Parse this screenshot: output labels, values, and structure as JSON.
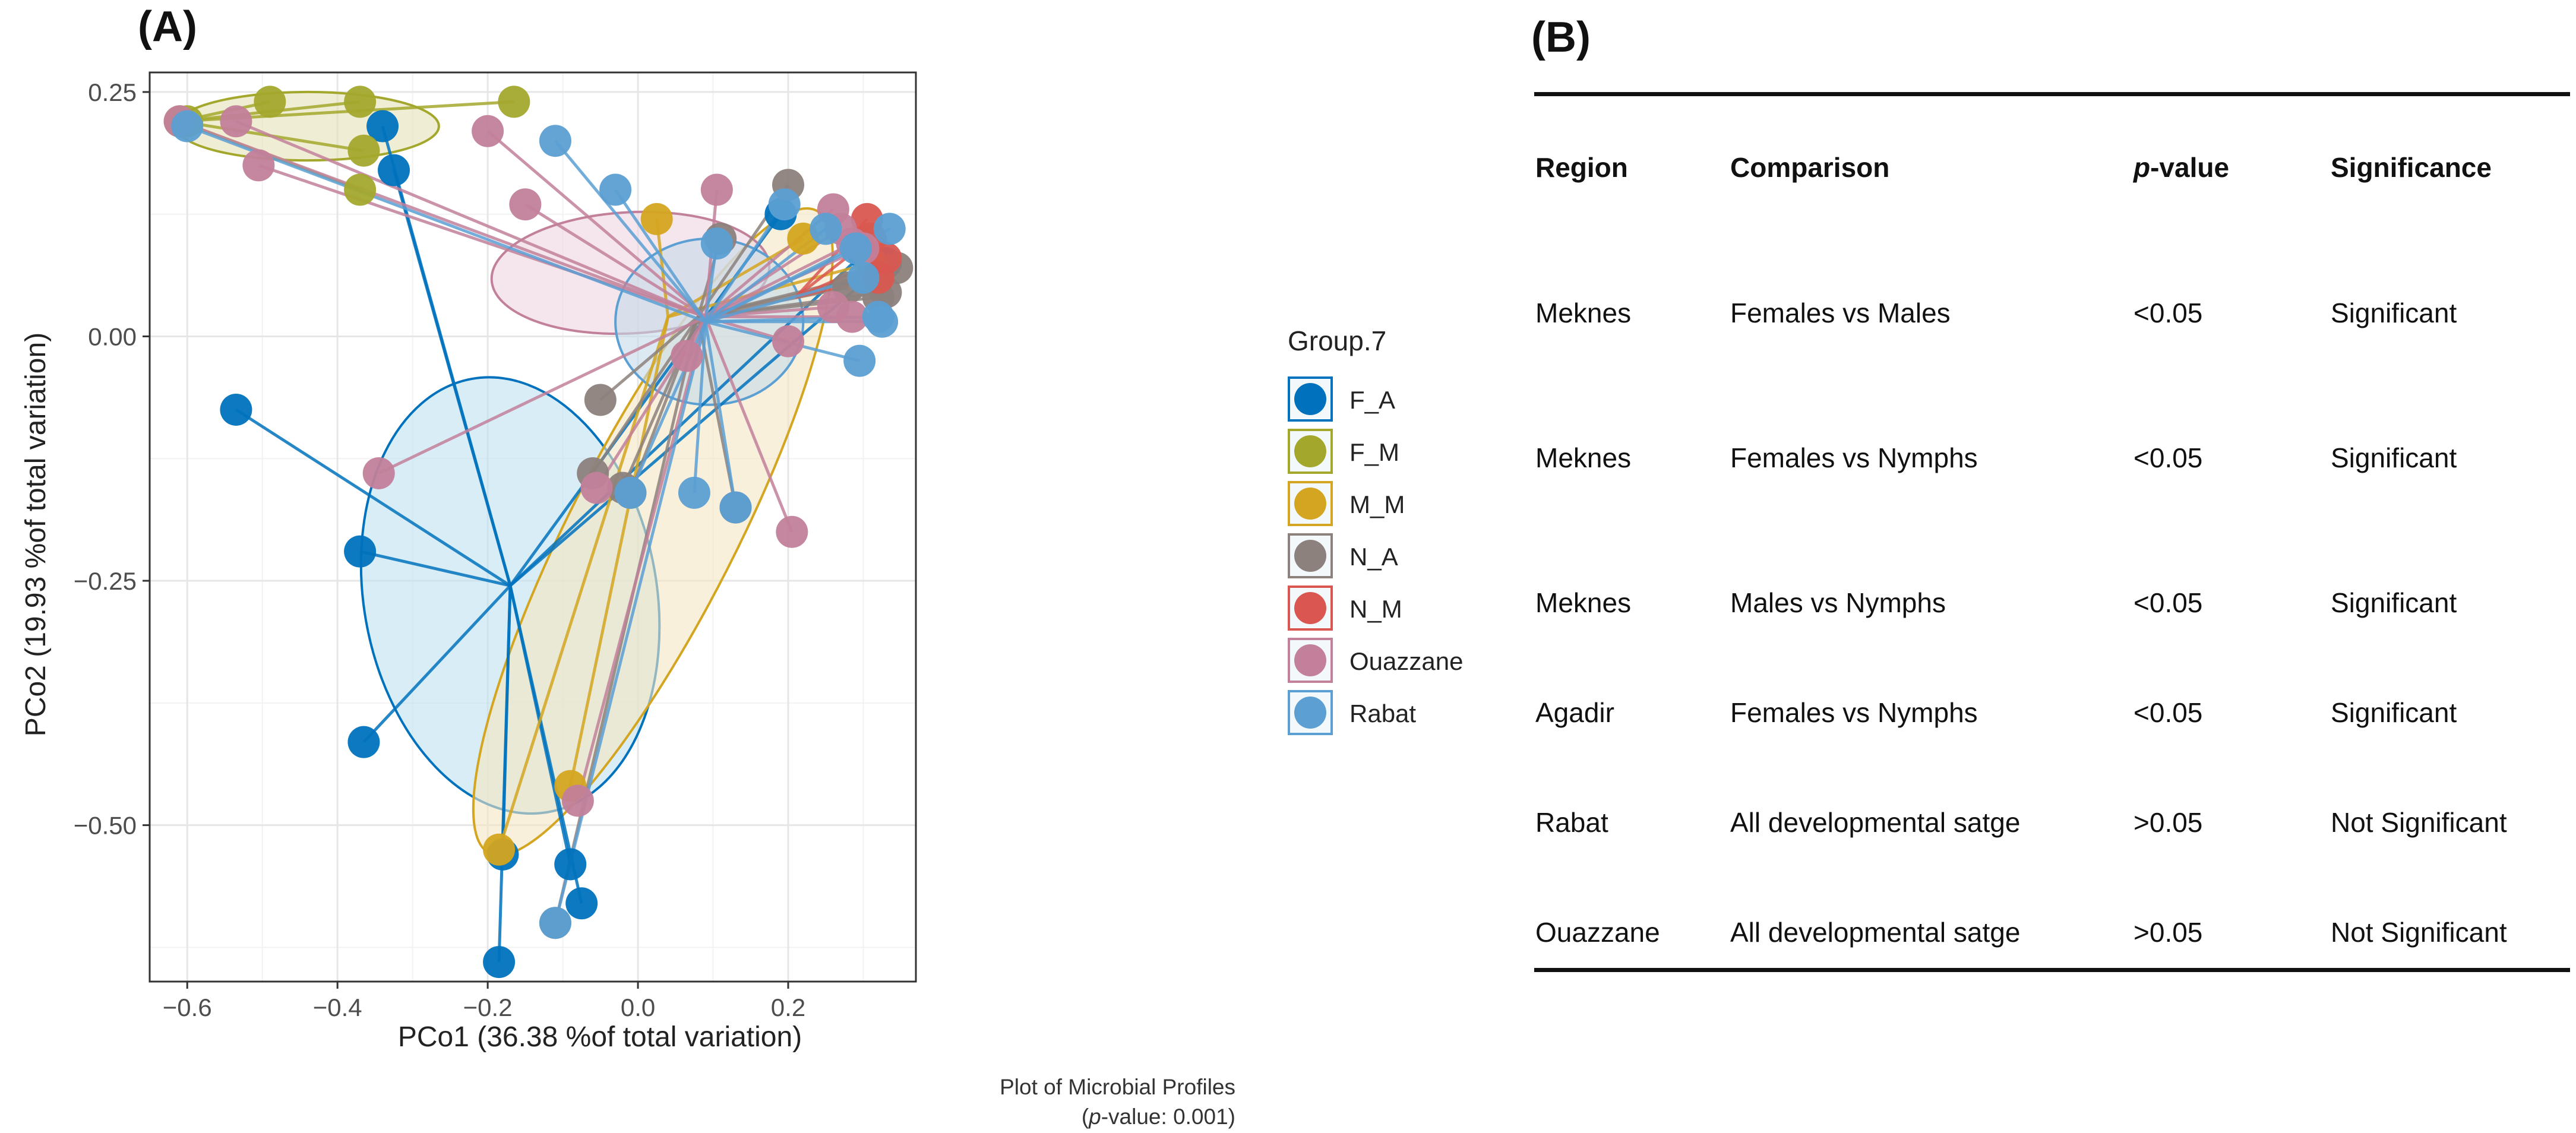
{
  "panel_labels": {
    "a": "(A)",
    "b": "(B)"
  },
  "chart_data": {
    "type": "scatter",
    "title": "Plot of Microbial Profiles",
    "subtitle": {
      "p_label": "p",
      "p_rest": "-value: 0.001"
    },
    "xlabel": "PCo1 (36.38 %of total variation)",
    "ylabel": "PCo2 (19.93 %of total variation)",
    "xlim": [
      -0.65,
      0.37
    ],
    "ylim": [
      -0.66,
      0.27
    ],
    "xticks": [
      -0.6,
      -0.4,
      -0.2,
      0.0,
      0.2
    ],
    "xtick_labels": [
      "−0.6",
      "−0.4",
      "−0.2",
      "0.0",
      "0.2"
    ],
    "yticks": [
      0.25,
      0.0,
      -0.25,
      -0.5
    ],
    "ytick_labels": [
      "0.25",
      "0.00",
      "−0.25",
      "−0.50"
    ],
    "grid": true,
    "legend": {
      "title": "Group.7",
      "position": "right",
      "entries": [
        {
          "label": "F_A",
          "color": "#0072BD"
        },
        {
          "label": "F_M",
          "color": "#A3A82D"
        },
        {
          "label": "M_M",
          "color": "#D4A520"
        },
        {
          "label": "N_A",
          "color": "#8C817C"
        },
        {
          "label": "N_M",
          "color": "#D95750"
        },
        {
          "label": "Ouazzane",
          "color": "#C2809A"
        },
        {
          "label": "Rabat",
          "color": "#5B9FD3"
        }
      ]
    },
    "series": [
      {
        "name": "F_A",
        "color": "#0072BD",
        "fill": "#bfe1f0",
        "centroid": [
          -0.17,
          -0.255
        ],
        "ellipse": {
          "cx": -0.17,
          "cy": -0.265,
          "rx": 0.195,
          "ry": 0.225,
          "angle": -10
        },
        "points": [
          [
            -0.535,
            -0.075
          ],
          [
            -0.37,
            -0.22
          ],
          [
            -0.365,
            -0.415
          ],
          [
            -0.18,
            -0.53
          ],
          [
            -0.185,
            -0.64
          ],
          [
            -0.09,
            -0.54
          ],
          [
            -0.075,
            -0.58
          ],
          [
            -0.34,
            0.215
          ],
          [
            -0.325,
            0.17
          ],
          [
            0.19,
            0.125
          ],
          [
            0.3,
            0.085
          ],
          [
            0.33,
            0.075
          ]
        ]
      },
      {
        "name": "F_M",
        "color": "#A3A82D",
        "fill": "#e4e3b8",
        "centroid": [
          -0.61,
          0.22
        ],
        "ellipse": {
          "cx": -0.44,
          "cy": 0.215,
          "rx": 0.175,
          "ry": 0.035,
          "angle": 0
        },
        "points": [
          [
            -0.61,
            0.22
          ],
          [
            -0.49,
            0.24
          ],
          [
            -0.37,
            0.24
          ],
          [
            -0.365,
            0.19
          ],
          [
            -0.37,
            0.15
          ],
          [
            -0.165,
            0.24
          ],
          [
            -0.6,
            0.22
          ]
        ]
      },
      {
        "name": "M_M",
        "color": "#D4A520",
        "fill": "#f3e6c2",
        "centroid": [
          0.04,
          0.02
        ],
        "ellipse": {
          "cx": 0.02,
          "cy": -0.2,
          "rx": 0.48,
          "ry": 0.085,
          "angle": -63
        },
        "points": [
          [
            0.025,
            0.12
          ],
          [
            0.22,
            0.1
          ],
          [
            -0.09,
            -0.46
          ],
          [
            -0.185,
            -0.525
          ],
          [
            0.31,
            0.075
          ]
        ]
      },
      {
        "name": "N_A",
        "color": "#8C817C",
        "fill": "#d9d4d0",
        "centroid": [
          0.08,
          0.02
        ],
        "ellipse": null,
        "points": [
          [
            0.2,
            0.155
          ],
          [
            0.28,
            0.05
          ],
          [
            0.31,
            0.06
          ],
          [
            0.32,
            0.04
          ],
          [
            0.33,
            0.045
          ],
          [
            0.345,
            0.07
          ],
          [
            0.11,
            0.1
          ],
          [
            -0.05,
            -0.065
          ],
          [
            -0.06,
            -0.14
          ],
          [
            -0.01,
            -0.16
          ],
          [
            -0.02,
            -0.155
          ],
          [
            -0.11,
            -0.6
          ],
          [
            0.13,
            -0.175
          ]
        ]
      },
      {
        "name": "N_M",
        "color": "#D95750",
        "fill": "#f0c8c6",
        "centroid": [
          0.21,
          0.04
        ],
        "ellipse": null,
        "points": [
          [
            0.305,
            0.12
          ],
          [
            0.31,
            0.1
          ],
          [
            0.32,
            0.06
          ],
          [
            0.33,
            0.08
          ]
        ]
      },
      {
        "name": "Ouazzane",
        "color": "#C2809A",
        "fill": "#ecd6e0",
        "centroid": [
          0.09,
          0.02
        ],
        "ellipse": {
          "cx": -0.01,
          "cy": 0.065,
          "rx": 0.185,
          "ry": 0.062,
          "angle": -3
        },
        "points": [
          [
            -0.61,
            0.22
          ],
          [
            -0.535,
            0.22
          ],
          [
            -0.505,
            0.175
          ],
          [
            -0.2,
            0.21
          ],
          [
            -0.15,
            0.135
          ],
          [
            0.105,
            0.15
          ],
          [
            0.26,
            0.13
          ],
          [
            0.27,
            0.11
          ],
          [
            0.285,
            0.095
          ],
          [
            0.3,
            0.09
          ],
          [
            0.205,
            -0.2
          ],
          [
            0.2,
            -0.005
          ],
          [
            0.26,
            0.03
          ],
          [
            0.285,
            0.02
          ],
          [
            -0.345,
            -0.14
          ],
          [
            -0.08,
            -0.475
          ],
          [
            -0.055,
            -0.155
          ],
          [
            0.065,
            -0.02
          ]
        ]
      },
      {
        "name": "Rabat",
        "color": "#5B9FD3",
        "fill": "#c4dbe9",
        "centroid": [
          0.09,
          0.015
        ],
        "ellipse": {
          "cx": 0.095,
          "cy": 0.015,
          "rx": 0.125,
          "ry": 0.085,
          "angle": 0
        },
        "points": [
          [
            -0.6,
            0.215
          ],
          [
            -0.11,
            0.2
          ],
          [
            -0.03,
            0.15
          ],
          [
            0.105,
            0.095
          ],
          [
            0.195,
            0.135
          ],
          [
            0.25,
            0.11
          ],
          [
            0.29,
            0.09
          ],
          [
            0.3,
            0.06
          ],
          [
            0.335,
            0.11
          ],
          [
            0.32,
            0.02
          ],
          [
            0.325,
            0.015
          ],
          [
            0.295,
            -0.025
          ],
          [
            0.075,
            -0.16
          ],
          [
            0.13,
            -0.175
          ],
          [
            -0.01,
            -0.16
          ],
          [
            -0.11,
            -0.6
          ]
        ]
      }
    ]
  },
  "table": {
    "headers": [
      "Region",
      "Comparison",
      "p-value",
      "Significance"
    ],
    "p_header": {
      "italic": "p",
      "rest": "-value"
    },
    "rows": [
      [
        "Meknes",
        "Females vs Males",
        "<0.05",
        "Significant"
      ],
      [
        "Meknes",
        "Females vs Nymphs",
        "<0.05",
        "Significant"
      ],
      [
        "Meknes",
        "Males vs Nymphs",
        "<0.05",
        "Significant"
      ],
      [
        "Agadir",
        "Females vs Nymphs",
        "<0.05",
        "Significant"
      ],
      [
        "Rabat",
        "All developmental satge",
        ">0.05",
        "Not Significant"
      ],
      [
        "Ouazzane",
        "All developmental satge",
        ">0.05",
        "Not Significant"
      ]
    ]
  }
}
